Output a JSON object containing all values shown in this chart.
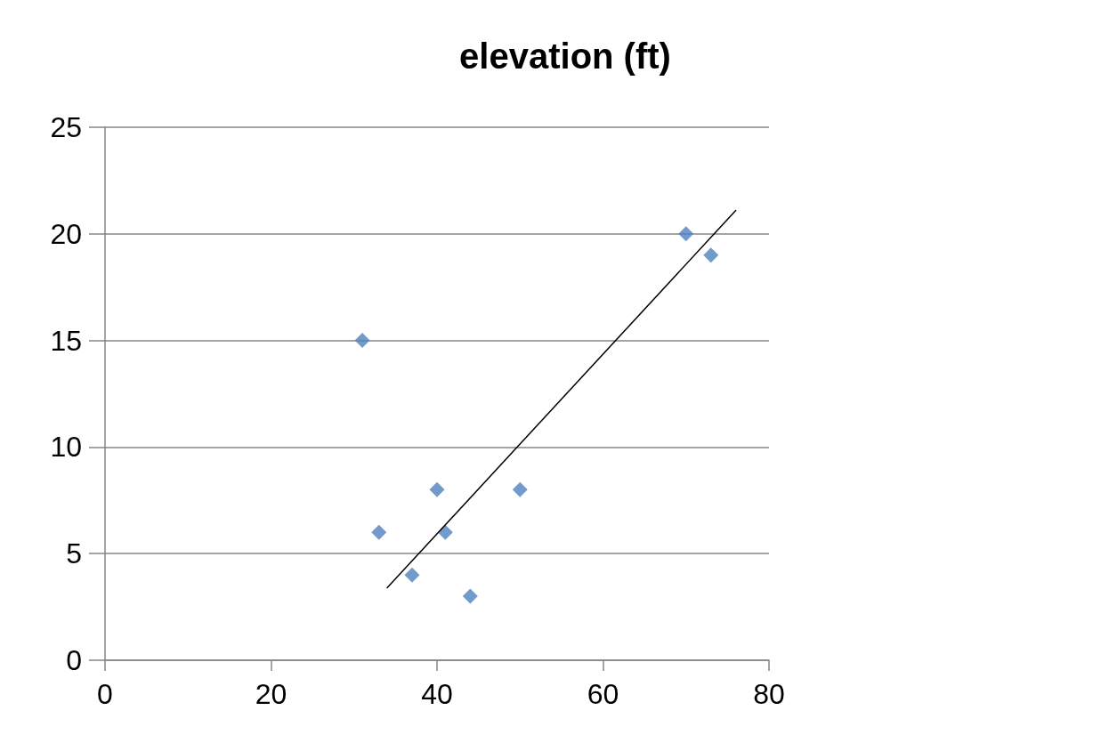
{
  "chart_data": {
    "type": "scatter",
    "title": "elevation (ft)",
    "marker": "diamond",
    "grid": "y",
    "xlim": [
      0,
      80
    ],
    "xticks": [
      0,
      20,
      40,
      60,
      80
    ],
    "ylim": [
      0,
      25
    ],
    "yticks": [
      0,
      5,
      10,
      15,
      20,
      25
    ],
    "series": [
      {
        "color": "#4f81bd",
        "x": [
          31,
          33,
          37,
          40,
          41,
          44,
          50,
          70,
          73
        ],
        "values": [
          15,
          6,
          4,
          8,
          6,
          3,
          8,
          20,
          19
        ]
      },
      {
        "type": "line",
        "color": "#000000",
        "marker": "none",
        "x": [
          34,
          76
        ],
        "values": [
          3.4,
          21.1
        ]
      }
    ]
  }
}
